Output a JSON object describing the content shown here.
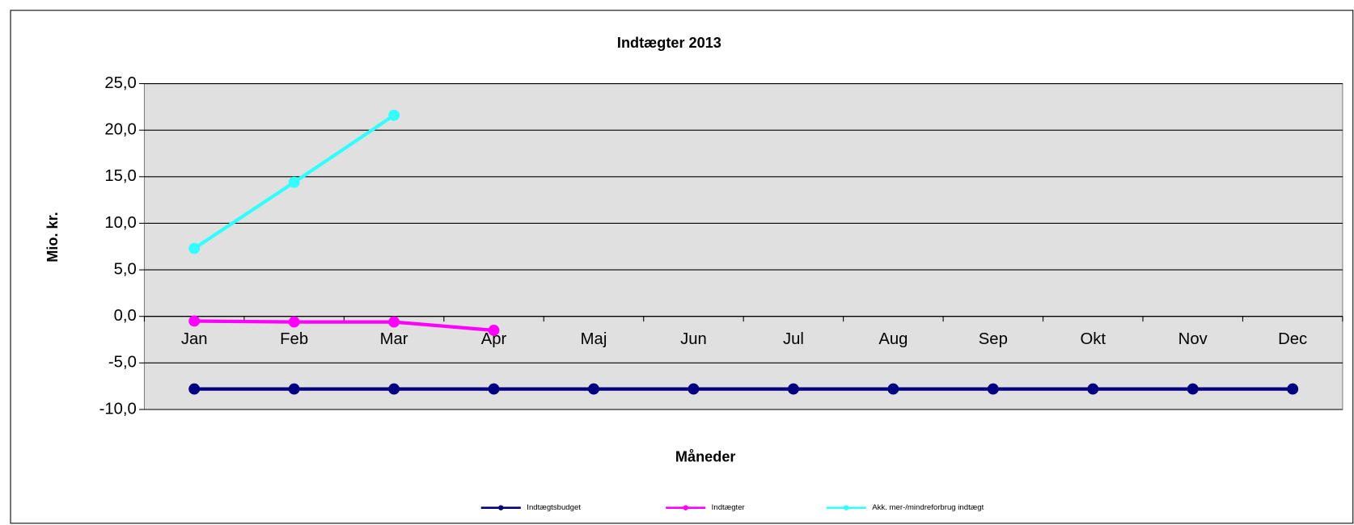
{
  "chart_data": {
    "type": "line",
    "title": "Indtægter 2013",
    "y_label": "Mio. kr.",
    "x_label": "Måneder",
    "categories": [
      "Jan",
      "Feb",
      "Mar",
      "Apr",
      "Maj",
      "Jun",
      "Jul",
      "Aug",
      "Sep",
      "Okt",
      "Nov",
      "Dec"
    ],
    "series": [
      {
        "name": "Indtægtsbudget",
        "color": "#000080",
        "values": [
          -7.8,
          -7.8,
          -7.8,
          -7.8,
          -7.8,
          -7.8,
          -7.8,
          -7.8,
          -7.8,
          -7.8,
          -7.8,
          -7.8
        ]
      },
      {
        "name": "Indtægter",
        "color": "#ff00ff",
        "values": [
          -0.5,
          -0.6,
          -0.6,
          -1.5,
          null,
          null,
          null,
          null,
          null,
          null,
          null,
          null
        ]
      },
      {
        "name": "Akk. mer-/mindreforbrug indtægt",
        "color": "#33ffff",
        "values": [
          7.3,
          14.4,
          21.6,
          null,
          null,
          null,
          null,
          null,
          null,
          null,
          null,
          null
        ]
      }
    ],
    "ylim": [
      -10,
      25
    ],
    "yticks": [
      {
        "value": -10,
        "label": "-10,0"
      },
      {
        "value": -5,
        "label": "-5,0"
      },
      {
        "value": 0,
        "label": "0,0"
      },
      {
        "value": 5,
        "label": "5,0"
      },
      {
        "value": 10,
        "label": "10,0"
      },
      {
        "value": 15,
        "label": "15,0"
      },
      {
        "value": 20,
        "label": "20,0"
      },
      {
        "value": 25,
        "label": "25,0"
      }
    ],
    "grid": true,
    "legend": "bottom"
  }
}
